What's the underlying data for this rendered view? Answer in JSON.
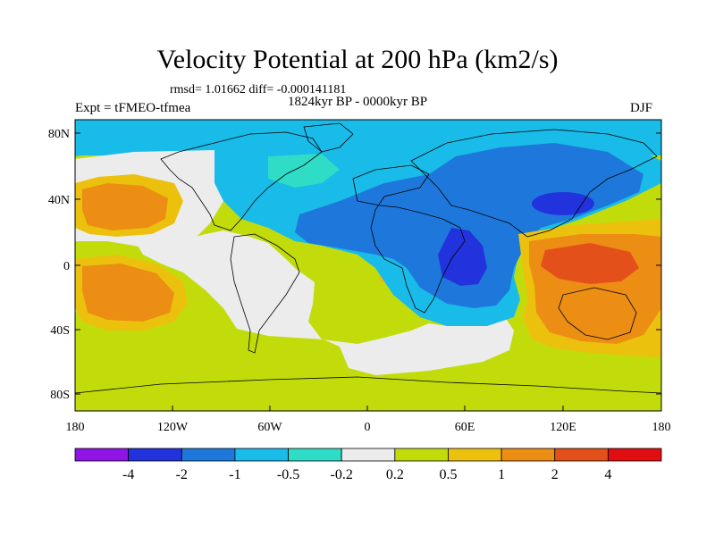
{
  "title": "Velocity Potential at 200 hPa (km2/s)",
  "stats": "rmsd= 1.01662 diff= -0.000141181",
  "period": "1824kyr BP - 0000kyr BP",
  "experiment": "Expt = tFMEO-tfmea",
  "season": "DJF",
  "lat_labels": [
    "80N",
    "40N",
    "0",
    "40S",
    "80S"
  ],
  "lon_labels": [
    "180",
    "120W",
    "60W",
    "0",
    "60E",
    "120E",
    "180"
  ],
  "colorbar": {
    "colors": [
      "#8f14e6",
      "#2233dd",
      "#1e78dc",
      "#19bbe8",
      "#2fdcc6",
      "#ececec",
      "#c2dc0b",
      "#ebc10e",
      "#ec8d14",
      "#e4501a",
      "#e20d10"
    ],
    "labels": [
      "-4",
      "-2",
      "-1",
      "-0.5",
      "-0.2",
      "0.2",
      "0.5",
      "1",
      "2",
      "4"
    ]
  }
}
